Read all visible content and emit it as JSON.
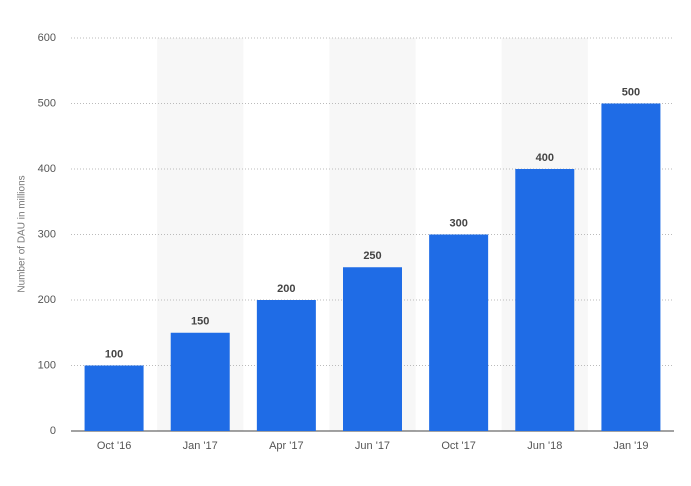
{
  "chart_data": {
    "type": "bar",
    "y_label": "Number of DAU in millions",
    "categories": [
      "Oct '16",
      "Jan '17",
      "Apr '17",
      "Jun '17",
      "Oct '17",
      "Jun '18",
      "Jan '19"
    ],
    "values": [
      100,
      150,
      200,
      250,
      300,
      400,
      500
    ],
    "color": "#1f6ce6",
    "ylim": [
      0,
      600
    ],
    "yticks": [
      0,
      100,
      200,
      300,
      400,
      500,
      600
    ],
    "grid": true,
    "band_shading": true,
    "show_value_labels": true
  }
}
